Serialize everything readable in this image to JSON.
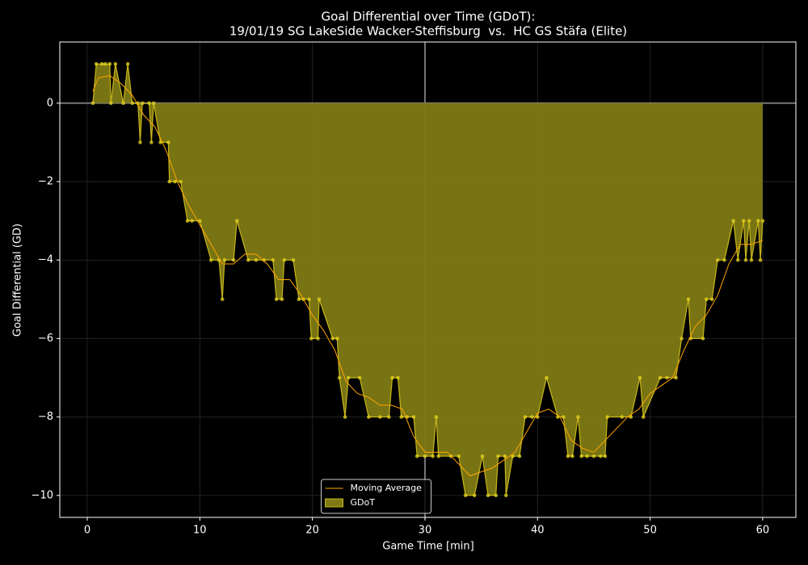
{
  "chart_data": {
    "type": "area",
    "title": "Goal Differential over Time (GDoT):",
    "subtitle": "19/01/19 SG LakeSide Wacker-Steffisburg  vs.  HC GS Stäfa (Elite)",
    "x_label": "Game Time [min]",
    "y_label": "Goal Differential (GD)",
    "xlim": [
      -2.44,
      62.95
    ],
    "ylim": [
      -10.56,
      1.56
    ],
    "xticks": [
      0,
      10,
      20,
      30,
      40,
      50,
      60
    ],
    "yticks": [
      {
        "value": -10,
        "label": "−10"
      },
      {
        "value": -8,
        "label": "−8"
      },
      {
        "value": -6,
        "label": "−6"
      },
      {
        "value": -4,
        "label": "−4"
      },
      {
        "value": -2,
        "label": "−2"
      },
      0
    ],
    "grid": true,
    "vline": 30,
    "hline": 0,
    "legend": "lower center",
    "series": [
      {
        "name": "Moving Average",
        "style": "line",
        "color": "#ffa500",
        "x": [
          0.5,
          1,
          2,
          3,
          4,
          5,
          6,
          7,
          8,
          9,
          10,
          11,
          12,
          13,
          14,
          15,
          16,
          17,
          18,
          19,
          20,
          21,
          22,
          23,
          24,
          25,
          26,
          27,
          28,
          29,
          30,
          31,
          32,
          33,
          34,
          35,
          36,
          37,
          38,
          39,
          40,
          41,
          42,
          43,
          44,
          45,
          46,
          47,
          48,
          49,
          50,
          51,
          52,
          53,
          54,
          55,
          56,
          57,
          58,
          59,
          60
        ],
        "values": [
          0.3,
          0.65,
          0.7,
          0.5,
          0.2,
          -0.3,
          -0.6,
          -1.2,
          -2,
          -2.6,
          -3.1,
          -3.6,
          -4.1,
          -4.1,
          -3.85,
          -3.85,
          -4.1,
          -4.5,
          -4.5,
          -4.9,
          -5.4,
          -5.8,
          -6.3,
          -7.1,
          -7.4,
          -7.5,
          -7.7,
          -7.7,
          -7.8,
          -8.5,
          -8.9,
          -8.9,
          -8.9,
          -9.2,
          -9.5,
          -9.4,
          -9.3,
          -9.1,
          -8.9,
          -8.4,
          -7.9,
          -7.8,
          -8.0,
          -8.6,
          -8.8,
          -8.9,
          -8.6,
          -8.3,
          -8.0,
          -7.8,
          -7.4,
          -7.2,
          -7.0,
          -6.3,
          -5.7,
          -5.4,
          -4.9,
          -4.1,
          -3.6,
          -3.6,
          -3.5
        ]
      },
      {
        "name": "GDoT",
        "style": "area",
        "color": "#e6d21f",
        "fill": "#807a14",
        "x": [
          0.5,
          0.8,
          1.3,
          1.6,
          2.0,
          2.1,
          2.5,
          3.2,
          3.6,
          4.0,
          4.5,
          4.7,
          4.9,
          5.5,
          5.7,
          5.9,
          6.5,
          7.2,
          7.3,
          7.8,
          8.3,
          8.9,
          9.3,
          10.0,
          11.0,
          11.7,
          12.0,
          12.2,
          13.0,
          13.3,
          14.3,
          15.0,
          15.7,
          16.5,
          16.8,
          17.3,
          17.5,
          18.3,
          18.8,
          19.2,
          19.7,
          19.9,
          20.5,
          20.6,
          21.8,
          22.2,
          22.4,
          22.9,
          23.2,
          24.2,
          25.0,
          26.0,
          26.8,
          27.1,
          27.6,
          27.9,
          28.4,
          29.0,
          29.3,
          30.0,
          30.7,
          31.0,
          31.2,
          32.3,
          33.0,
          33.6,
          34.4,
          35.1,
          35.6,
          36.3,
          36.5,
          37.1,
          37.2,
          37.8,
          38.4,
          38.9,
          39.5,
          40.0,
          40.8,
          41.8,
          42.3,
          42.7,
          43.1,
          43.6,
          43.9,
          44.4,
          45.0,
          45.6,
          46.0,
          46.2,
          47.5,
          48.3,
          49.1,
          49.4,
          50.9,
          51.5,
          52.3,
          52.8,
          53.4,
          53.6,
          54.7,
          55.0,
          55.5,
          56.0,
          56.6,
          57.4,
          57.8,
          58.3,
          58.5,
          58.8,
          59.0,
          59.6,
          59.8,
          60.0
        ],
        "values": [
          0,
          1,
          1,
          1,
          1,
          0,
          1,
          0,
          1,
          0,
          0,
          -1,
          0,
          0,
          -1,
          0,
          -1,
          -1,
          -2,
          -2,
          -2,
          -3,
          -3,
          -3,
          -4,
          -4,
          -5,
          -4,
          -4,
          -3,
          -4,
          -4,
          -4,
          -4,
          -5,
          -5,
          -4,
          -4,
          -5,
          -5,
          -5,
          -6,
          -6,
          -5,
          -6,
          -6,
          -7,
          -8,
          -7,
          -7,
          -8,
          -8,
          -8,
          -7,
          -7,
          -8,
          -8,
          -8,
          -9,
          -9,
          -9,
          -8,
          -9,
          -9,
          -9,
          -10,
          -10,
          -9,
          -10,
          -10,
          -9,
          -9,
          -10,
          -9,
          -9,
          -8,
          -8,
          -8,
          -7,
          -8,
          -8,
          -9,
          -9,
          -8,
          -9,
          -9,
          -9,
          -9,
          -9,
          -8,
          -8,
          -8,
          -7,
          -8,
          -7,
          -7,
          -7,
          -6,
          -5,
          -6,
          -6,
          -5,
          -5,
          -4,
          -4,
          -3,
          -4,
          -3,
          -4,
          -3,
          -4,
          -3,
          -4,
          -3
        ]
      }
    ]
  }
}
